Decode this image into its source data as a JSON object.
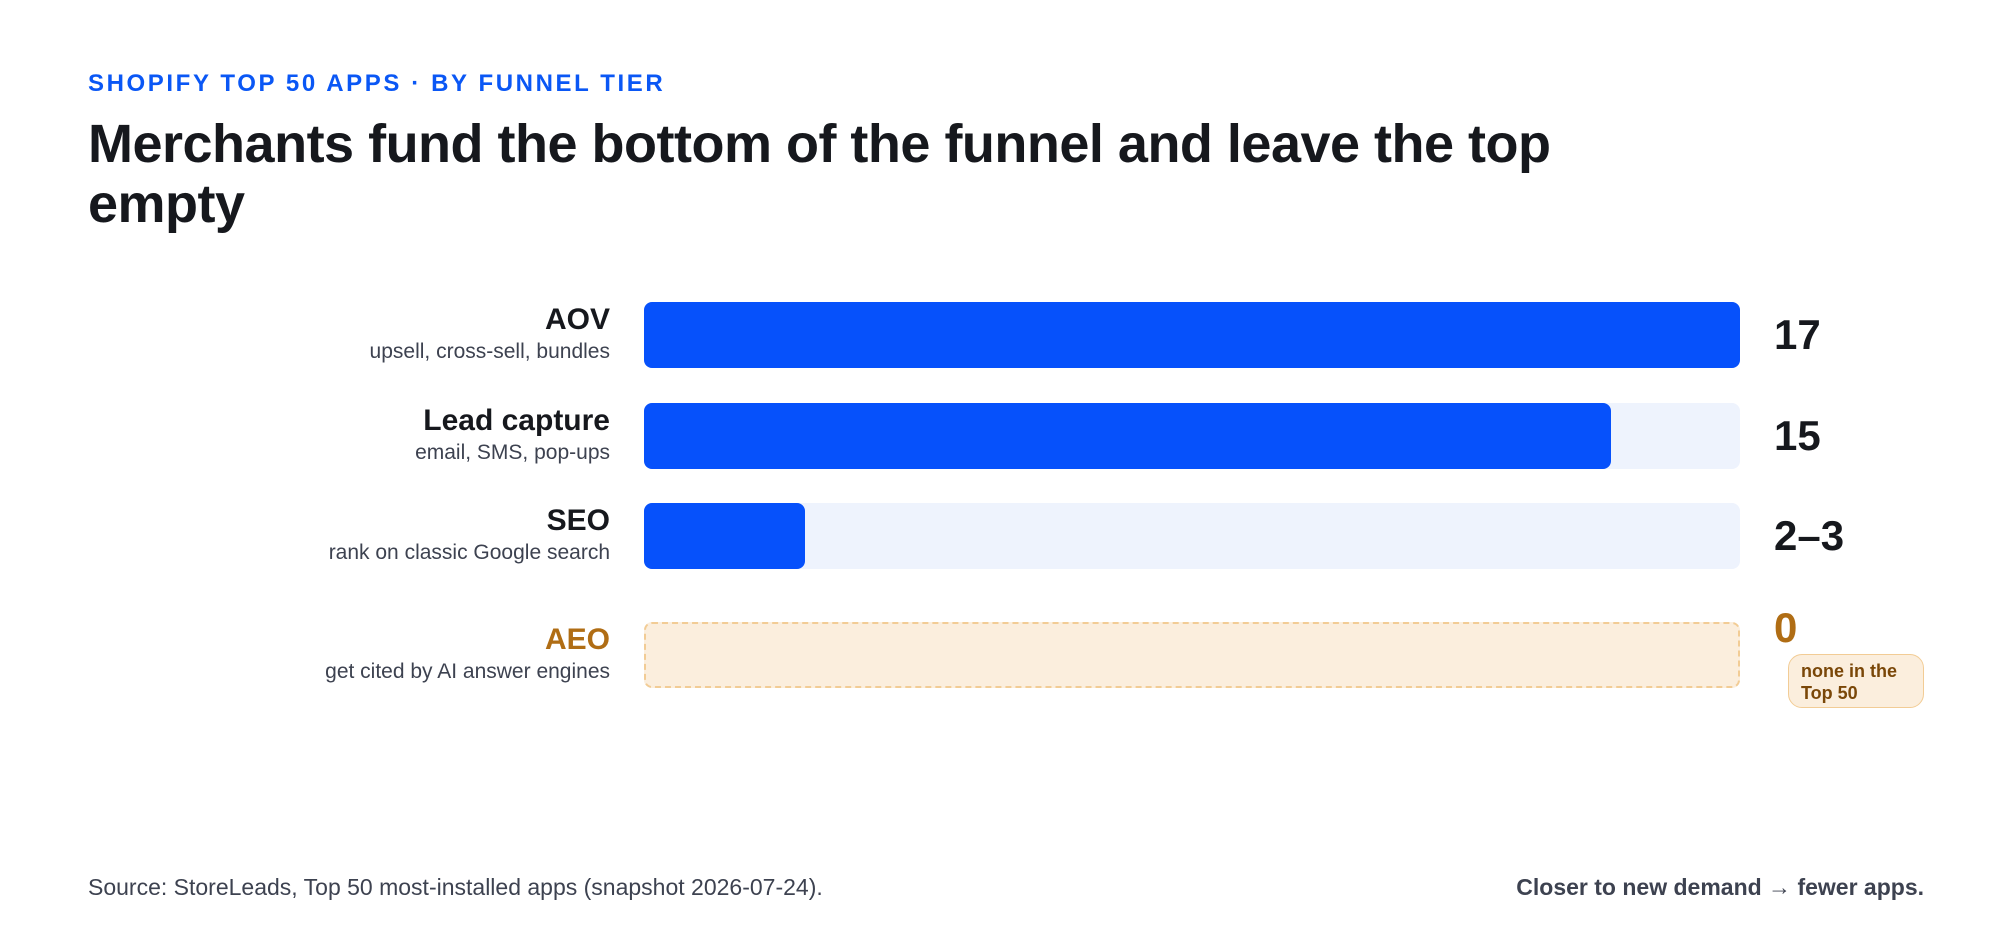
{
  "header": {
    "eyebrow": "SHOPIFY TOP 50 APPS · BY FUNNEL TIER",
    "title": "Merchants fund the bottom of the funnel and leave the top empty"
  },
  "chart_data": {
    "type": "bar",
    "orientation": "horizontal",
    "categories": [
      "AOV",
      "Lead capture",
      "SEO",
      "AEO"
    ],
    "descriptions": [
      "upsell, cross-sell, bundles",
      "email, SMS, pop-ups",
      "rank on classic Google search",
      "get cited by AI answer engines"
    ],
    "values": [
      17,
      15,
      2.5,
      0
    ],
    "value_labels": [
      "17",
      "15",
      "2–3",
      "0"
    ],
    "xlim": [
      0,
      17
    ],
    "grid": false,
    "annotations": [
      {
        "category": "AEO",
        "text": "none in the Top 50"
      }
    ],
    "colors": {
      "bar": "#0651fb",
      "track": "#eef3fd",
      "highlight": "#b06d14",
      "highlight_track": "#fbeedd",
      "highlight_border": "#f2cc95"
    }
  },
  "footer": {
    "source": "Source: StoreLeads, Top 50 most-installed apps (snapshot 2026-07-24).",
    "takeaway": "Closer to new demand → fewer apps."
  }
}
